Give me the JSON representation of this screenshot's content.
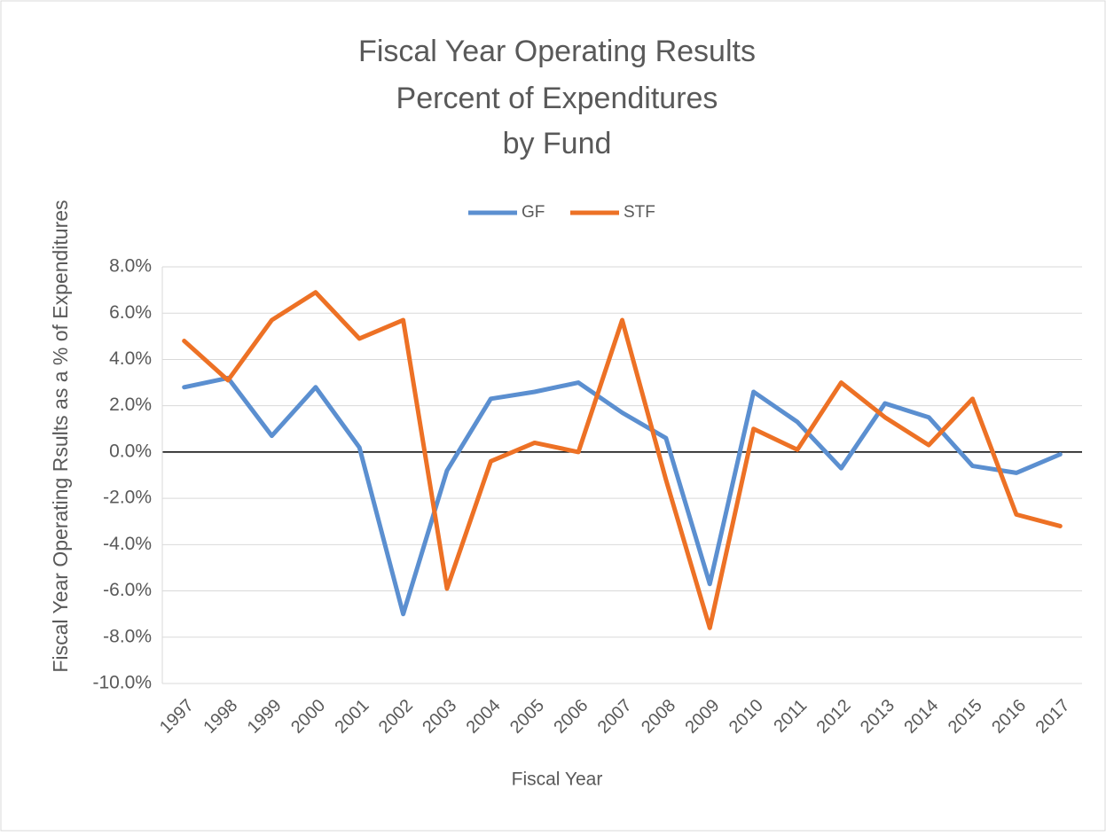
{
  "chart_data": {
    "type": "line",
    "title": [
      "Fiscal Year Operating Results",
      "Percent of Expenditures",
      "by Fund"
    ],
    "y_label": "Fiscal Year Operating Rsults as a % of Expenditures",
    "x_label": "Fiscal Year",
    "categories": [
      "1997",
      "1998",
      "1999",
      "2000",
      "2001",
      "2002",
      "2003",
      "2004",
      "2005",
      "2006",
      "2007",
      "2008",
      "2009",
      "2010",
      "2011",
      "2012",
      "2013",
      "2014",
      "2015",
      "2016",
      "2017"
    ],
    "series": [
      {
        "name": "GF",
        "color": "#5b8fd0",
        "values": [
          2.8,
          3.2,
          0.7,
          2.8,
          0.2,
          -7.0,
          -0.8,
          2.3,
          2.6,
          3.0,
          1.7,
          0.6,
          -5.7,
          2.6,
          1.3,
          -0.7,
          2.1,
          1.5,
          -0.6,
          -0.9,
          -0.1
        ]
      },
      {
        "name": "STF",
        "color": "#ed7125",
        "values": [
          4.8,
          3.1,
          5.7,
          6.9,
          4.9,
          5.7,
          -5.9,
          -0.4,
          0.4,
          0.0,
          5.7,
          -1.2,
          -7.6,
          1.0,
          0.1,
          3.0,
          1.5,
          0.3,
          2.3,
          -2.7,
          -3.2
        ]
      }
    ],
    "ylim": [
      -10,
      8
    ],
    "yticks": [
      {
        "value": -10,
        "label": "-10.0%"
      },
      {
        "value": -8,
        "label": "-8.0%"
      },
      {
        "value": -6,
        "label": "-6.0%"
      },
      {
        "value": -4,
        "label": "-4.0%"
      },
      {
        "value": -2,
        "label": "-2.0%"
      },
      {
        "value": 0,
        "label": "0.0%"
      },
      {
        "value": 2,
        "label": "2.0%"
      },
      {
        "value": 4,
        "label": "4.0%"
      },
      {
        "value": 6,
        "label": "6.0%"
      },
      {
        "value": 8,
        "label": "8.0%"
      }
    ],
    "grid": true,
    "legend": "top"
  }
}
